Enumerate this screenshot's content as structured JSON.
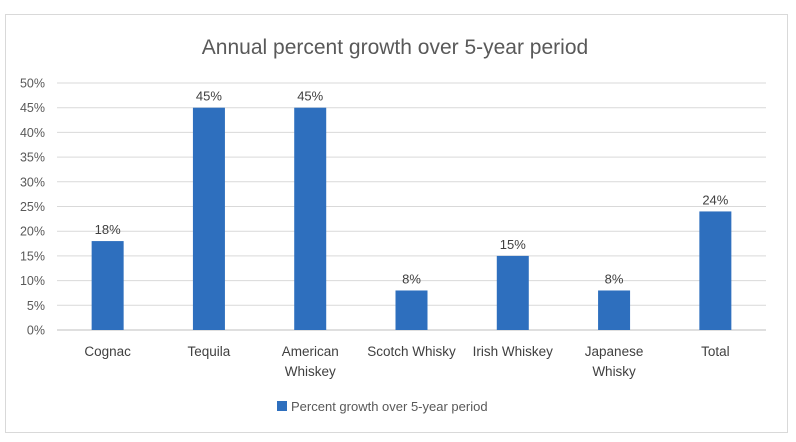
{
  "chart_data": {
    "type": "bar",
    "title": "Annual percent growth over 5-year period",
    "categories": [
      "Cognac",
      "Tequila",
      "American Whiskey",
      "Scotch Whisky",
      "Irish Whiskey",
      "Japanese Whisky",
      "Total"
    ],
    "category_lines": [
      [
        "Cognac"
      ],
      [
        "Tequila"
      ],
      [
        "American",
        "Whiskey"
      ],
      [
        "Scotch Whisky"
      ],
      [
        "Irish Whiskey"
      ],
      [
        "Japanese",
        "Whisky"
      ],
      [
        "Total"
      ]
    ],
    "series": [
      {
        "name": "Percent growth over 5-year period",
        "values": [
          18,
          45,
          45,
          8,
          15,
          8,
          24
        ],
        "value_labels": [
          "18%",
          "45%",
          "45%",
          "8%",
          "15%",
          "8%",
          "24%"
        ],
        "color": "#2e6fbe"
      }
    ],
    "y_ticks": [
      0,
      5,
      10,
      15,
      20,
      25,
      30,
      35,
      40,
      45,
      50
    ],
    "y_tick_labels": [
      "0%",
      "5%",
      "10%",
      "15%",
      "20%",
      "25%",
      "30%",
      "35%",
      "40%",
      "45%",
      "50%"
    ],
    "ylim": [
      0,
      50
    ],
    "xlabel": "",
    "ylabel": "",
    "grid": true,
    "legend_position": "bottom",
    "gridline_color": "#d9d9d9",
    "text_color": "#595959"
  }
}
